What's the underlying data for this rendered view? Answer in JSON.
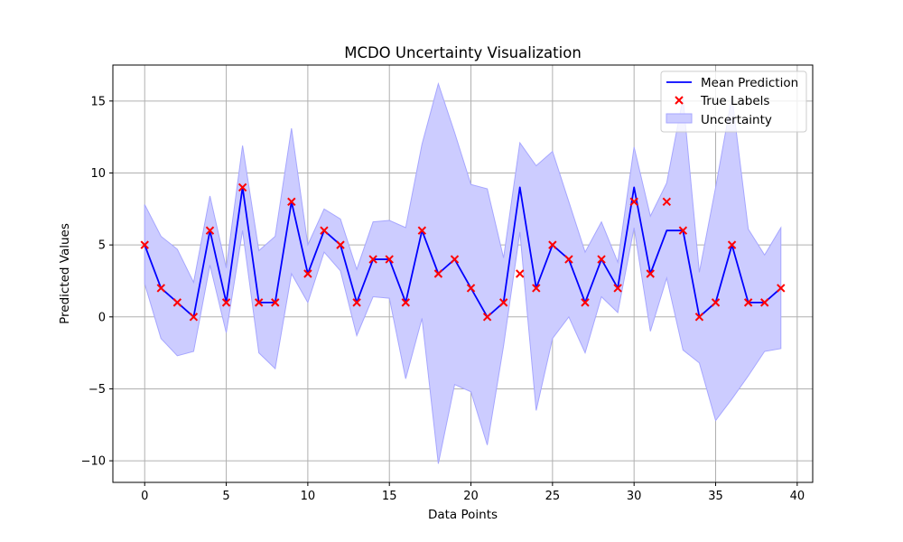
{
  "chart_data": {
    "type": "line",
    "title": "MCDO Uncertainty Visualization",
    "xlabel": "Data Points",
    "ylabel": "Predicted Values",
    "xlim": [
      -1.95,
      40.95
    ],
    "ylim": [
      -11.5,
      17.5
    ],
    "xticks": [
      0,
      5,
      10,
      15,
      20,
      25,
      30,
      35,
      40
    ],
    "yticks": [
      -10,
      -5,
      0,
      5,
      10,
      15
    ],
    "ytick_labels": [
      "−10",
      "−5",
      "0",
      "5",
      "10",
      "15"
    ],
    "grid": true,
    "legend_position": "top-right",
    "colors": {
      "mean": "#0000ff",
      "true": "#ff0000",
      "band_fill": "#ccccff",
      "band_edge": "#a6a6ff",
      "grid": "#b0b0b0"
    },
    "x": [
      0,
      1,
      2,
      3,
      4,
      5,
      6,
      7,
      8,
      9,
      10,
      11,
      12,
      13,
      14,
      15,
      16,
      17,
      18,
      19,
      20,
      21,
      22,
      23,
      24,
      25,
      26,
      27,
      28,
      29,
      30,
      31,
      32,
      33,
      34,
      35,
      36,
      37,
      38,
      39
    ],
    "series": [
      {
        "name": "Mean Prediction",
        "kind": "line",
        "values": [
          5,
          2,
          1,
          0,
          6,
          1,
          9,
          1,
          1,
          8,
          3,
          6,
          5,
          1,
          4,
          4,
          1,
          6,
          3,
          4,
          2,
          0,
          1,
          9,
          2,
          5,
          4,
          1,
          4,
          2,
          9,
          3,
          6,
          6,
          0,
          1,
          5,
          1,
          1,
          2
        ]
      },
      {
        "name": "True Labels",
        "kind": "scatter",
        "values": [
          5,
          2,
          1,
          0,
          6,
          1,
          9,
          1,
          1,
          8,
          3,
          6,
          5,
          1,
          4,
          4,
          1,
          6,
          3,
          4,
          2,
          0,
          1,
          3,
          2,
          5,
          4,
          1,
          4,
          2,
          8,
          3,
          8,
          6,
          0,
          1,
          5,
          1,
          1,
          2
        ]
      },
      {
        "name": "Uncertainty",
        "kind": "band",
        "upper": [
          7.8,
          5.6,
          4.7,
          2.4,
          8.4,
          3.4,
          11.9,
          4.6,
          5.6,
          13.1,
          5.0,
          7.5,
          6.8,
          3.3,
          6.6,
          6.7,
          6.2,
          12.0,
          16.2,
          12.8,
          9.2,
          8.9,
          4.1,
          12.1,
          10.5,
          11.5,
          8.0,
          4.5,
          6.6,
          3.8,
          11.8,
          7.0,
          9.3,
          15.2,
          3.1,
          9.0,
          15.3,
          6.1,
          4.3,
          6.2
        ],
        "lower": [
          2.3,
          -1.5,
          -2.7,
          -2.4,
          3.6,
          -1.1,
          6.0,
          -2.5,
          -3.6,
          3.0,
          1.0,
          4.5,
          3.2,
          -1.3,
          1.4,
          1.3,
          -4.3,
          -0.1,
          -10.2,
          -4.7,
          -5.2,
          -8.9,
          -2.0,
          5.9,
          -6.5,
          -1.5,
          0.0,
          -2.5,
          1.4,
          0.3,
          6.2,
          -1.0,
          2.7,
          -2.3,
          -3.2,
          -7.2,
          -5.7,
          -4.1,
          -2.4,
          -2.2
        ]
      }
    ]
  }
}
